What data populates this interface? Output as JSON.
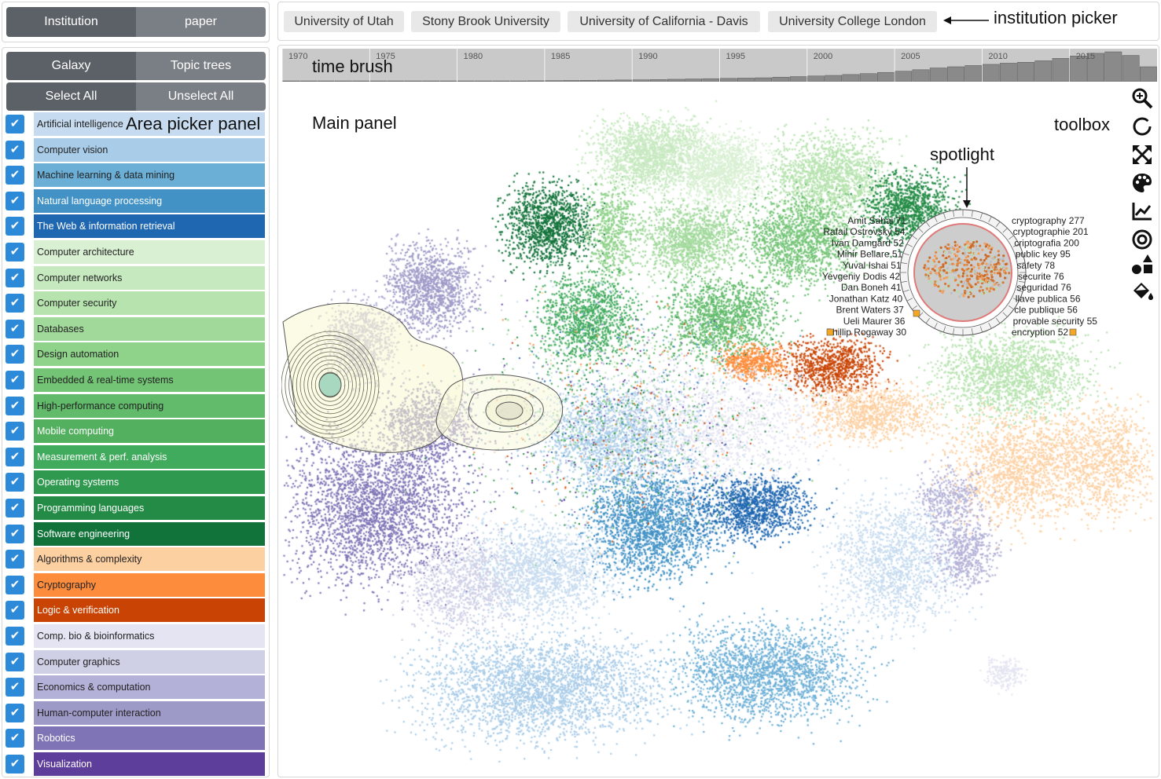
{
  "top_left_tabs": {
    "institution": "Institution",
    "paper": "paper"
  },
  "area_panel": {
    "view_tabs": {
      "galaxy": "Galaxy",
      "topic_trees": "Topic trees"
    },
    "select_all": "Select All",
    "unselect_all": "Unselect All",
    "check_glyph": "✔",
    "items": [
      {
        "label": "Artificial intelligence",
        "color": "#c6dbef"
      },
      {
        "label": "Computer vision",
        "color": "#a9cce8"
      },
      {
        "label": "Machine learning & data mining",
        "color": "#6baed6"
      },
      {
        "label": "Natural language processing",
        "color": "#4292c6"
      },
      {
        "label": "The Web & information retrieval",
        "color": "#1f67b1"
      },
      {
        "label": "Computer architecture",
        "color": "#d9f0d3"
      },
      {
        "label": "Computer networks",
        "color": "#c7e9c0"
      },
      {
        "label": "Computer security",
        "color": "#b6e3ae"
      },
      {
        "label": "Databases",
        "color": "#a1d99b"
      },
      {
        "label": "Design automation",
        "color": "#8fd28a"
      },
      {
        "label": "Embedded & real-time systems",
        "color": "#74c476"
      },
      {
        "label": "High-performance computing",
        "color": "#62bb6b"
      },
      {
        "label": "Mobile computing",
        "color": "#52b05f"
      },
      {
        "label": "Measurement & perf. analysis",
        "color": "#41ab5d"
      },
      {
        "label": "Operating systems",
        "color": "#2f9a4f"
      },
      {
        "label": "Programming languages",
        "color": "#238b45"
      },
      {
        "label": "Software engineering",
        "color": "#12733a"
      },
      {
        "label": "Algorithms & complexity",
        "color": "#fdd0a2"
      },
      {
        "label": "Cryptography",
        "color": "#fd8d3c"
      },
      {
        "label": "Logic & verification",
        "color": "#c94404"
      },
      {
        "label": "Comp. bio & bioinformatics",
        "color": "#e4e4f2"
      },
      {
        "label": "Computer graphics",
        "color": "#cfcfe6"
      },
      {
        "label": "Economics & computation",
        "color": "#b3b1d7"
      },
      {
        "label": "Human-computer interaction",
        "color": "#9e9ac8"
      },
      {
        "label": "Robotics",
        "color": "#7f74b6"
      },
      {
        "label": "Visualization",
        "color": "#5e3e9b"
      }
    ]
  },
  "institutions": [
    "University of Utah",
    "Stony Brook University",
    "University of California - Davis",
    "University College London"
  ],
  "annotations": {
    "institution_picker": "institution picker",
    "time_brush": "time brush",
    "area_picker_panel": "Area picker panel",
    "main_panel": "Main panel",
    "toolbox": "toolbox",
    "spotlight": "spotlight"
  },
  "time_brush": {
    "year_ticks": [
      "1970",
      "1975",
      "1980",
      "1985",
      "1990",
      "1995",
      "2000",
      "2005",
      "2010",
      "2015"
    ],
    "relative_counts": [
      0.004,
      0.004,
      0.005,
      0.006,
      0.007,
      0.008,
      0.01,
      0.011,
      0.013,
      0.015,
      0.018,
      0.02,
      0.022,
      0.026,
      0.03,
      0.035,
      0.04,
      0.045,
      0.05,
      0.056,
      0.062,
      0.07,
      0.08,
      0.09,
      0.1,
      0.11,
      0.12,
      0.13,
      0.15,
      0.17,
      0.19,
      0.21,
      0.24,
      0.27,
      0.31,
      0.35,
      0.4,
      0.46,
      0.5,
      0.54,
      0.58,
      0.62,
      0.65,
      0.7,
      0.78,
      0.86,
      0.95,
      1.0,
      0.88,
      0.5
    ]
  },
  "toolbox": {
    "tools": [
      "zoom-in-icon",
      "lasso-icon",
      "expand-icon",
      "palette-icon",
      "line-chart-icon",
      "target-icon",
      "shapes-icon",
      "paint-bucket-icon"
    ]
  },
  "spotlight": {
    "authors": [
      "Amit Sahai 71",
      "Rafail Ostrovsky 54",
      "Ivan Damgård 52",
      "Mihir Bellare 51",
      "Yuval Ishai 51",
      "Yevgeniy Dodis 42",
      "Dan Boneh 41",
      "Jonathan Katz 40",
      "Brent Waters 37",
      "Ueli Maurer 36",
      "Phillip Rogaway 30"
    ],
    "keywords": [
      "cryptography 277",
      "cryptographie 201",
      "criptografia 200",
      "public key 95",
      "safety 78",
      "securite 76",
      "seguridad 76",
      "llave publica 56",
      "cle publique 56",
      "provable security 55",
      "encryption 52"
    ]
  }
}
